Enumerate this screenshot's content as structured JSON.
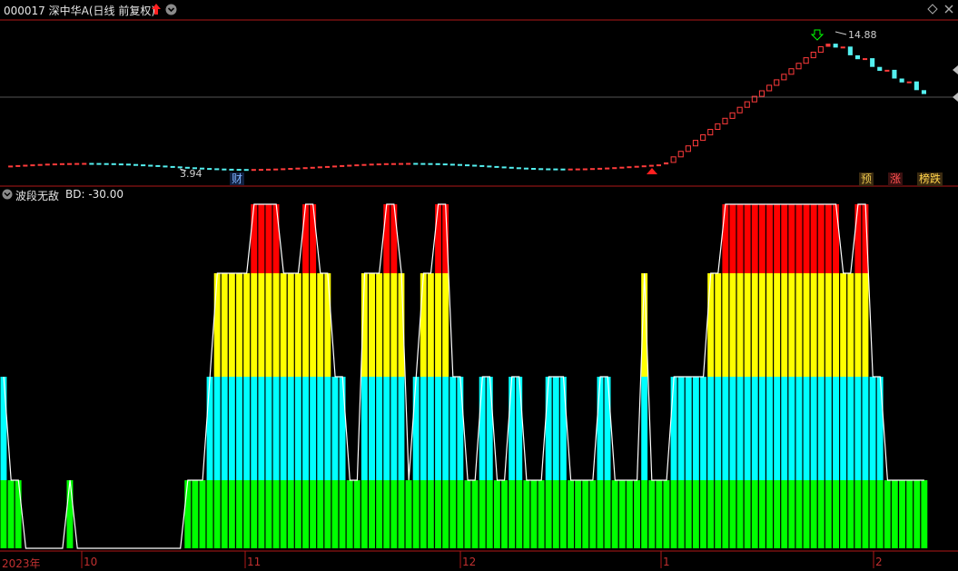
{
  "header": {
    "code": "000017",
    "name": "深中华A",
    "mode": "(日线 前复权)"
  },
  "indicator": {
    "name": "波段无敌",
    "value_label": "BD: -30.00"
  },
  "price_labels": {
    "low": "3.94",
    "high": "14.88"
  },
  "tags": {
    "cai": "财",
    "yu": "预",
    "zhang": "涨",
    "bang": "榜跌"
  },
  "xaxis": {
    "labels": [
      "2023年",
      "10",
      "11",
      "12",
      "1",
      "2"
    ]
  },
  "colors": {
    "up": "#ff3b3b",
    "down": "#54f0f0",
    "red_block": "#ff0000",
    "yellow_block": "#ffff00",
    "cyan_block": "#00ffff",
    "green_block": "#00ff00"
  },
  "chart_data": {
    "type": "bar",
    "title": "波段无敌",
    "levels": [
      1,
      2,
      3,
      4
    ],
    "level_colors": [
      "#00ff00",
      "#00ffff",
      "#ffff00",
      "#ff0000"
    ],
    "values": [
      2,
      1,
      1,
      0,
      0,
      0,
      0,
      0,
      0,
      1,
      0,
      0,
      0,
      0,
      0,
      0,
      0,
      0,
      0,
      0,
      0,
      0,
      0,
      0,
      0,
      1,
      1,
      1,
      2,
      3,
      3,
      3,
      3,
      3,
      4,
      4,
      4,
      4,
      3,
      3,
      3,
      4,
      4,
      3,
      3,
      2,
      2,
      1,
      1,
      3,
      3,
      3,
      4,
      4,
      3,
      1,
      2,
      3,
      3,
      4,
      4,
      2,
      2,
      1,
      1,
      2,
      2,
      1,
      1,
      2,
      2,
      1,
      1,
      1,
      2,
      2,
      2,
      1,
      1,
      1,
      1,
      2,
      2,
      1,
      1,
      1,
      1,
      3,
      1,
      1,
      1,
      2,
      2,
      2,
      2,
      2,
      3,
      3,
      4,
      4,
      4,
      4,
      4,
      4,
      4,
      4,
      4,
      4,
      4,
      4,
      4,
      4,
      4,
      4,
      3,
      3,
      4,
      4,
      2,
      2,
      1,
      1,
      1,
      1,
      1,
      1
    ],
    "lows": [
      3.94
    ],
    "highs": [
      14.88
    ]
  }
}
